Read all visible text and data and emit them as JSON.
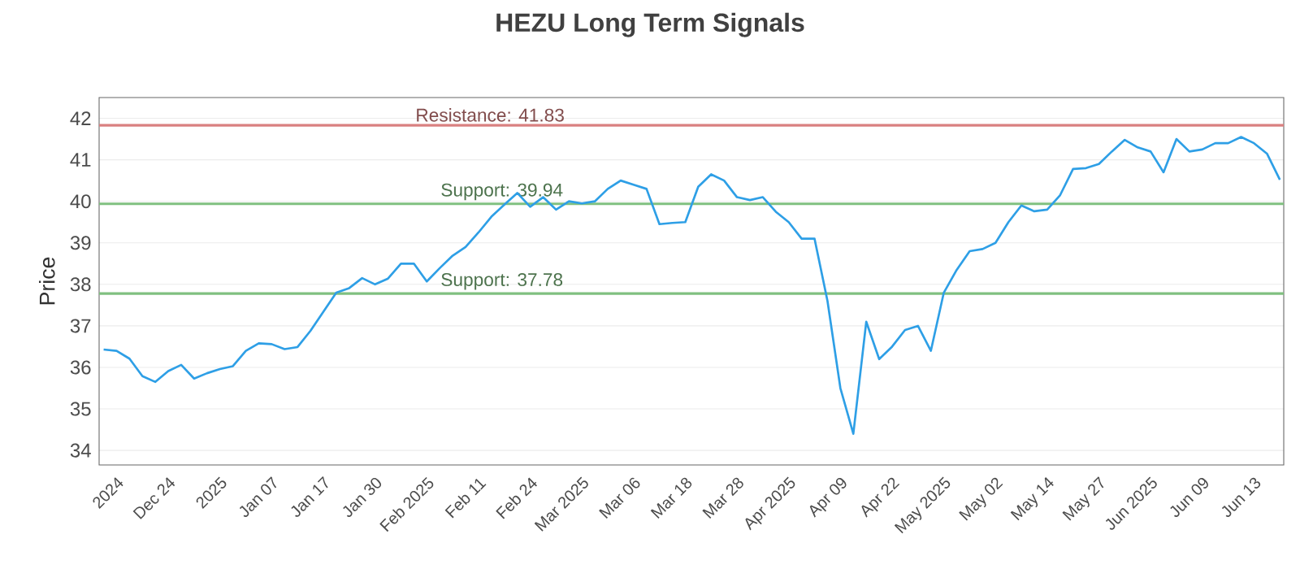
{
  "chart_data": {
    "type": "line",
    "title": "HEZU Long Term Signals",
    "ylabel": "Price",
    "categories": [
      null,
      "2024",
      null,
      null,
      null,
      "Dec 24",
      null,
      null,
      null,
      "2025",
      null,
      null,
      null,
      "Jan 07",
      null,
      null,
      null,
      "Jan 17",
      null,
      null,
      null,
      "Jan 30",
      null,
      null,
      null,
      "Feb 2025",
      null,
      null,
      null,
      "Feb 11",
      null,
      null,
      null,
      "Feb 24",
      null,
      null,
      null,
      "Mar 2025",
      null,
      null,
      null,
      "Mar 06",
      null,
      null,
      null,
      "Mar 18",
      null,
      null,
      null,
      "Mar 28",
      null,
      null,
      null,
      "Apr 2025",
      null,
      null,
      null,
      "Apr 09",
      null,
      null,
      null,
      "Apr 22",
      null,
      null,
      null,
      "May 2025",
      null,
      null,
      null,
      "May 02",
      null,
      null,
      null,
      "May 14",
      null,
      null,
      null,
      "May 27",
      null,
      null,
      null,
      "Jun 2025",
      null,
      null,
      null,
      "Jun 09",
      null,
      null,
      null,
      "Jun 13",
      null,
      null
    ],
    "series": [
      {
        "color": "#2e9fe6",
        "values": [
          36.43,
          36.4,
          36.21,
          35.79,
          35.65,
          35.91,
          36.06,
          35.73,
          35.86,
          35.96,
          36.03,
          36.4,
          36.58,
          36.56,
          36.44,
          36.49,
          36.88,
          37.34,
          37.8,
          37.91,
          38.15,
          38.0,
          38.14,
          38.5,
          38.5,
          38.07,
          38.39,
          38.69,
          38.9,
          39.25,
          39.63,
          39.92,
          40.2,
          39.87,
          40.1,
          39.8,
          40.0,
          39.95,
          40.0,
          40.3,
          40.5,
          40.4,
          40.3,
          39.45,
          39.48,
          39.5,
          40.35,
          40.65,
          40.5,
          40.1,
          40.03,
          40.1,
          39.75,
          39.5,
          39.1,
          39.1,
          37.6,
          35.5,
          34.4,
          37.1,
          36.2,
          36.5,
          36.9,
          37.0,
          36.4,
          37.8,
          38.35,
          38.8,
          38.85,
          39.0,
          39.5,
          39.9,
          39.76,
          39.8,
          40.15,
          40.78,
          40.8,
          40.9,
          41.2,
          41.48,
          41.3,
          41.2,
          40.7,
          41.5,
          41.2,
          41.25,
          41.4,
          41.4,
          41.55,
          41.4,
          41.15,
          40.52
        ]
      }
    ],
    "ylim": [
      33.65,
      42.5
    ],
    "yticks": [
      34,
      35,
      36,
      37,
      38,
      39,
      40,
      41,
      42
    ],
    "grid": "y",
    "ref_lines": [
      {
        "axis": "y",
        "value": 41.83,
        "label": "Resistance: 41.83",
        "color": "#d98080"
      },
      {
        "axis": "y",
        "value": 39.94,
        "label": "Support: 39.94",
        "color": "#80c080"
      },
      {
        "axis": "y",
        "value": 37.78,
        "label": "Support: 37.78",
        "color": "#80c080"
      }
    ]
  }
}
